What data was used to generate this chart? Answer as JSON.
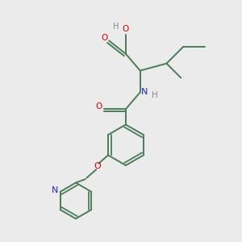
{
  "bg_color": "#ebebeb",
  "bond_color": "#4a7c59",
  "atom_colors": {
    "O": "#dd0000",
    "N": "#2222cc",
    "H": "#888888",
    "C": "#4a7c59"
  },
  "figsize": [
    3.0,
    3.0
  ],
  "dpi": 100
}
